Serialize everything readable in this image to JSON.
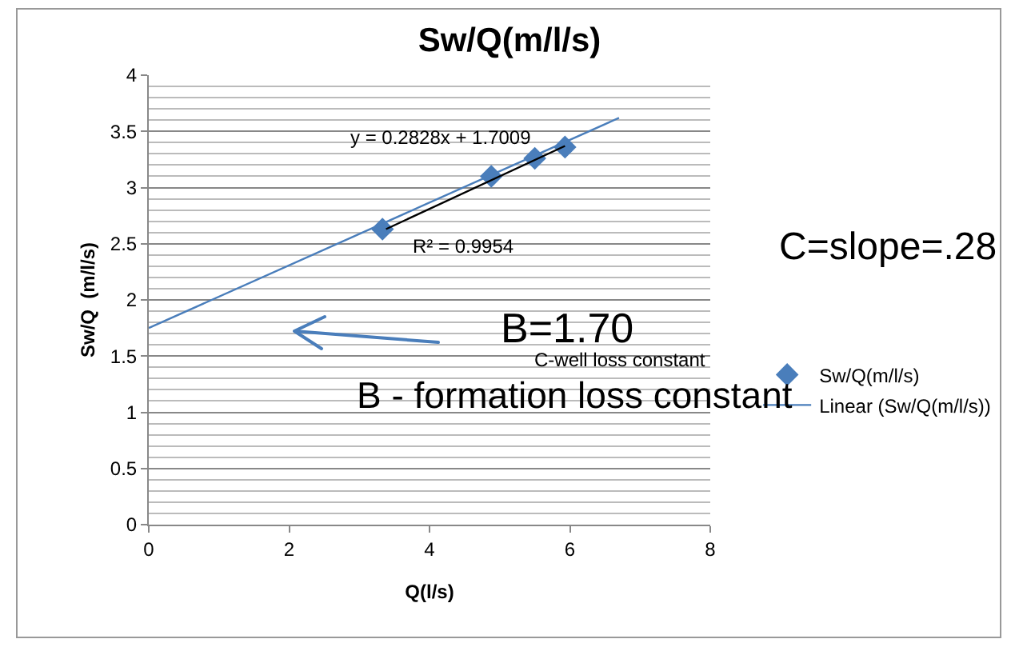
{
  "chart_data": {
    "type": "scatter",
    "title": "Sw/Q(m/l/s)",
    "xlabel": "Q(l/s)",
    "ylabel": "Sw/Q  (m/l/s)",
    "xlim": [
      0,
      8
    ],
    "xticks": [
      0,
      2,
      4,
      6,
      8
    ],
    "ylim": [
      0,
      4
    ],
    "yticks": [
      0,
      0.5,
      1,
      1.5,
      2,
      2.5,
      3,
      3.5,
      4
    ],
    "grid": "y",
    "legend": "right",
    "marker": "diamond",
    "series": [
      {
        "name": "Sw/Q(m/l/s)",
        "type": "scatter",
        "color": "#4a7ebb",
        "x": [
          3.33,
          4.88,
          5.5,
          5.93
        ],
        "values": [
          2.63,
          3.1,
          3.26,
          3.36
        ]
      },
      {
        "name": "Linear (Sw/Q(m/l/s))",
        "type": "line",
        "marker": "none",
        "color": "#4a7ebb",
        "x": [
          0,
          6.7
        ],
        "values": [
          1.75,
          3.62
        ]
      },
      {
        "type": "line",
        "marker": "none",
        "color": "#000000",
        "x": [
          3.38,
          5.93
        ],
        "values": [
          2.63,
          3.37
        ]
      }
    ],
    "annotations": [
      "y = 0.2828x + 1.7009",
      "R² = 0.9954",
      "B=1.70",
      "C-well loss constant",
      "B - formation loss constant",
      "C=slope=.28"
    ]
  }
}
